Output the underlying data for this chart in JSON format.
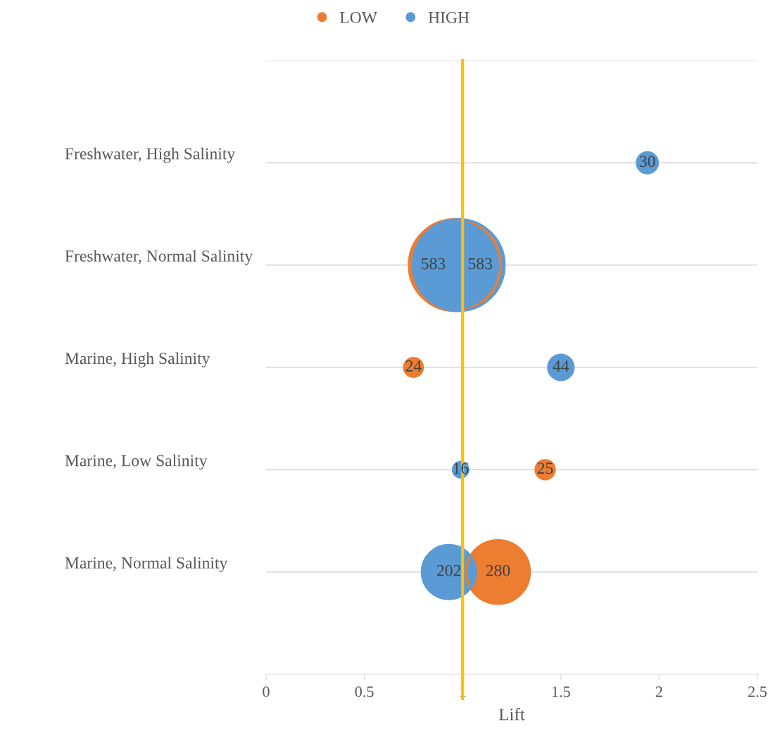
{
  "chart_data": {
    "type": "bubble",
    "orientation": "horizontal",
    "xlabel": "Lift",
    "categories": [
      "Freshwater, High Salinity",
      "Freshwater, Normal Salinity",
      "Marine, High Salinity",
      "Marine, Low Salinity",
      "Marine, Normal Salinity"
    ],
    "series": [
      {
        "name": "LOW",
        "color": "#ed7d31",
        "values": [
          null,
          0.96,
          0.75,
          1.42,
          1.18
        ],
        "sizes": [
          null,
          583,
          24,
          25,
          280
        ],
        "value_labels": [
          null,
          "583",
          "24",
          "25",
          "280"
        ]
      },
      {
        "name": "HIGH",
        "color": "#5b9bd5",
        "values": [
          1.94,
          0.98,
          1.5,
          0.99,
          0.93
        ],
        "sizes": [
          30,
          583,
          44,
          16,
          202
        ],
        "value_labels": [
          "30",
          "583",
          "44",
          "16",
          "202"
        ]
      }
    ],
    "xlim": [
      0,
      2.5
    ],
    "xticks": [
      0,
      0.5,
      1,
      1.5,
      2,
      2.5
    ],
    "ref_lines": [
      {
        "axis": "x",
        "value": 1,
        "color": "#ffc000"
      }
    ],
    "grid": "y",
    "legend": "top"
  }
}
